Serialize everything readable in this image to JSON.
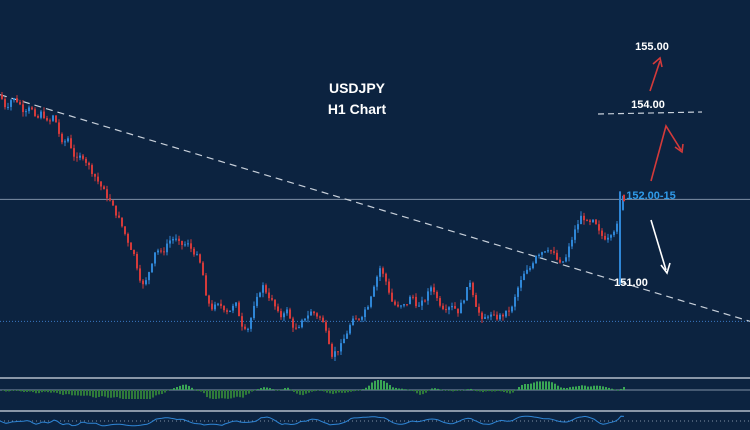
{
  "chart_data": {
    "type": "candlestick",
    "title": "USDJPY",
    "subtitle": "H1 Chart",
    "instrument": "USDJPY",
    "timeframe": "H1",
    "background_color": "#0c2340",
    "up_color": "#2f86d6",
    "down_color": "#d43a3a",
    "grid": false,
    "ylim": [
      150.1,
      155.35
    ],
    "price_path": [
      [
        0,
        154.35
      ],
      [
        6,
        154.15
      ],
      [
        12,
        154.3
      ],
      [
        18,
        154.25
      ],
      [
        24,
        154.1
      ],
      [
        30,
        154.2
      ],
      [
        36,
        153.95
      ],
      [
        42,
        154.1
      ],
      [
        48,
        153.9
      ],
      [
        54,
        154.05
      ],
      [
        62,
        153.6
      ],
      [
        68,
        153.7
      ],
      [
        76,
        153.35
      ],
      [
        82,
        153.45
      ],
      [
        92,
        153.2
      ],
      [
        100,
        153.0
      ],
      [
        110,
        152.75
      ],
      [
        120,
        152.45
      ],
      [
        128,
        152.15
      ],
      [
        134,
        151.95
      ],
      [
        140,
        151.6
      ],
      [
        144,
        151.45
      ],
      [
        150,
        151.75
      ],
      [
        156,
        152.05
      ],
      [
        162,
        151.95
      ],
      [
        168,
        152.15
      ],
      [
        174,
        152.2
      ],
      [
        180,
        152.1
      ],
      [
        188,
        152.1
      ],
      [
        196,
        151.95
      ],
      [
        202,
        151.75
      ],
      [
        206,
        151.3
      ],
      [
        212,
        151.15
      ],
      [
        220,
        151.2
      ],
      [
        228,
        151.1
      ],
      [
        236,
        151.2
      ],
      [
        242,
        150.9
      ],
      [
        248,
        150.85
      ],
      [
        254,
        151.15
      ],
      [
        262,
        151.5
      ],
      [
        268,
        151.35
      ],
      [
        274,
        151.2
      ],
      [
        280,
        151.0
      ],
      [
        286,
        151.15
      ],
      [
        292,
        150.9
      ],
      [
        298,
        150.8
      ],
      [
        304,
        151.0
      ],
      [
        312,
        151.1
      ],
      [
        320,
        151.0
      ],
      [
        326,
        150.85
      ],
      [
        332,
        150.45
      ],
      [
        340,
        150.55
      ],
      [
        346,
        150.75
      ],
      [
        352,
        150.95
      ],
      [
        360,
        151.0
      ],
      [
        368,
        151.2
      ],
      [
        374,
        151.5
      ],
      [
        380,
        151.75
      ],
      [
        386,
        151.55
      ],
      [
        392,
        151.25
      ],
      [
        398,
        151.15
      ],
      [
        406,
        151.2
      ],
      [
        412,
        151.35
      ],
      [
        418,
        151.15
      ],
      [
        426,
        151.3
      ],
      [
        432,
        151.5
      ],
      [
        438,
        151.25
      ],
      [
        444,
        151.15
      ],
      [
        452,
        151.2
      ],
      [
        458,
        151.1
      ],
      [
        464,
        151.3
      ],
      [
        470,
        151.55
      ],
      [
        476,
        151.2
      ],
      [
        482,
        150.95
      ],
      [
        488,
        151.05
      ],
      [
        496,
        151.0
      ],
      [
        504,
        151.05
      ],
      [
        512,
        151.15
      ],
      [
        518,
        151.45
      ],
      [
        524,
        151.65
      ],
      [
        530,
        151.75
      ],
      [
        536,
        151.95
      ],
      [
        542,
        152.0
      ],
      [
        548,
        152.05
      ],
      [
        554,
        151.95
      ],
      [
        560,
        151.8
      ],
      [
        566,
        151.9
      ],
      [
        570,
        152.1
      ],
      [
        576,
        152.35
      ],
      [
        582,
        152.55
      ],
      [
        588,
        152.4
      ],
      [
        594,
        152.45
      ],
      [
        600,
        152.25
      ],
      [
        606,
        152.2
      ],
      [
        612,
        152.3
      ],
      [
        616,
        152.35
      ],
      [
        619,
        152.45
      ],
      [
        622,
        152.9
      ],
      [
        625,
        152.78
      ]
    ],
    "horizontal_lines": [
      {
        "price": 152.78,
        "style": "solid",
        "color": "#7f90a6"
      },
      {
        "price": 150.95,
        "style": "dotted",
        "color": "#3a78c4"
      }
    ],
    "trendline": {
      "from": [
        0,
        154.35
      ],
      "to": [
        750,
        150.95
      ],
      "style": "dashed",
      "color": "#c8d0da"
    },
    "levels": [
      {
        "label": "155.00",
        "color": "#ffffff"
      },
      {
        "label": "154.00",
        "color": "#ffffff"
      },
      {
        "label": "152.00-15",
        "color": "#2f9ae8"
      },
      {
        "label": "151.00",
        "color": "#ffffff"
      }
    ],
    "indicator_panel": {
      "type": "histogram",
      "positive_color": "#3aa655",
      "negative_color": "#2f7a3a"
    }
  }
}
